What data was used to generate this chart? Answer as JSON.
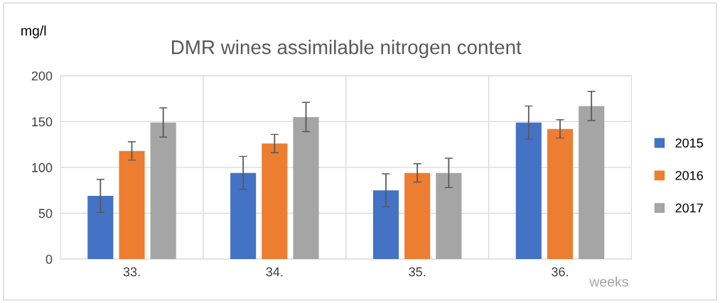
{
  "chart_data": {
    "type": "bar",
    "title": "DMR wines assimilable nitrogen content",
    "ylabel": "mg/l",
    "xlabel": "weeks",
    "categories": [
      "33.",
      "34.",
      "35.",
      "36."
    ],
    "series": [
      {
        "name": "2015",
        "color": "#4472c4",
        "values": [
          69,
          94,
          75,
          149
        ],
        "errors": [
          18,
          18,
          18,
          18
        ]
      },
      {
        "name": "2016",
        "color": "#ed7d31",
        "values": [
          118,
          126,
          94,
          142
        ],
        "errors": [
          10,
          10,
          10,
          10
        ]
      },
      {
        "name": "2017",
        "color": "#a5a5a5",
        "values": [
          149,
          155,
          94,
          167
        ],
        "errors": [
          16,
          16,
          16,
          16
        ]
      }
    ],
    "ylim": [
      0,
      200
    ],
    "yticks": [
      0,
      50,
      100,
      150,
      200
    ],
    "grid": true,
    "legend": "right"
  }
}
